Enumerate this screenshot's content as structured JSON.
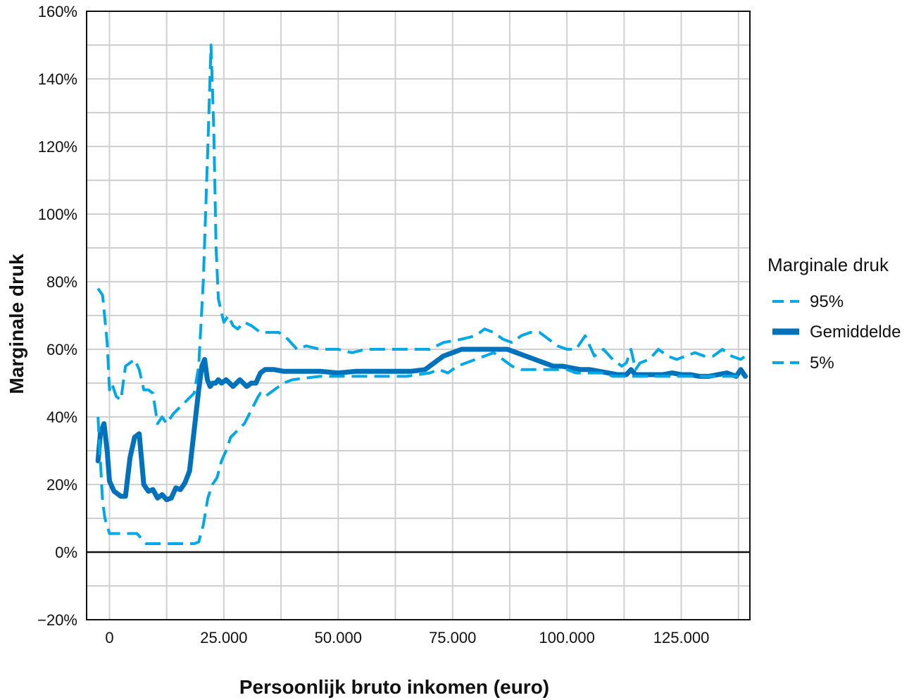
{
  "chart_data": {
    "type": "line",
    "xlabel": "Persoonlijk bruto inkomen (euro)",
    "ylabel": "Marginale druk",
    "xlim": [
      -5000,
      140000
    ],
    "ylim": [
      -20,
      160
    ],
    "x_ticks": [
      0,
      25000,
      50000,
      75000,
      100000,
      125000
    ],
    "x_tick_labels": [
      "0",
      "25.000",
      "50.000",
      "75.000",
      "100.000",
      "125.000"
    ],
    "y_ticks": [
      -20,
      0,
      20,
      40,
      60,
      80,
      100,
      120,
      140,
      160
    ],
    "y_tick_labels": [
      "−20%",
      "0%",
      "20%",
      "40%",
      "60%",
      "80%",
      "100%",
      "120%",
      "140%",
      "160%"
    ],
    "grid": true,
    "legend": {
      "title": "Marginale druk",
      "position": "right"
    },
    "colors": {
      "dashed": "#00A8E8",
      "solid": "#0072BC",
      "grid": "#d0d0d0",
      "zero": "#111111"
    },
    "series": [
      {
        "name": "95%",
        "style": "dashed",
        "x": [
          -2500,
          -1500,
          -500,
          0,
          500,
          1500,
          2500,
          3500,
          4500,
          5500,
          6500,
          7500,
          8500,
          9500,
          10500,
          11500,
          12500,
          14000,
          15500,
          17000,
          18500,
          19500,
          20500,
          21500,
          22200,
          22800,
          23300,
          23800,
          24300,
          25000,
          26000,
          27000,
          28000,
          29500,
          31000,
          33000,
          35000,
          37000,
          39000,
          41000,
          43000,
          46000,
          50000,
          53000,
          56000,
          60000,
          65000,
          70000,
          73000,
          77000,
          80000,
          82000,
          84000,
          86000,
          88000,
          90000,
          92000,
          94000,
          96000,
          98000,
          100000,
          102000,
          104000,
          106000,
          108000,
          110000,
          112000,
          113000,
          114000,
          115000,
          116000,
          118000,
          120000,
          122000,
          124000,
          126000,
          128000,
          130000,
          132000,
          134000,
          136000,
          138000,
          139000
        ],
        "values": [
          78,
          76,
          62,
          48,
          50,
          46,
          45,
          55,
          56,
          57,
          54,
          48,
          48,
          47,
          38,
          40,
          38,
          41,
          43,
          45,
          47,
          55,
          80,
          120,
          150,
          125,
          90,
          75,
          72,
          68,
          70,
          67,
          66,
          68,
          67,
          65,
          65,
          65,
          63,
          60,
          61,
          60,
          60,
          59,
          60,
          60,
          60,
          60,
          62,
          63,
          64,
          66,
          65,
          63,
          62,
          64,
          65,
          65,
          63,
          61,
          60,
          60,
          64,
          58,
          60,
          57,
          55,
          56,
          60,
          54,
          56,
          57,
          60,
          58,
          57,
          58,
          59,
          58,
          58,
          60,
          58,
          57,
          58
        ]
      },
      {
        "name": "Gemiddelde",
        "style": "solid",
        "x": [
          -2500,
          -2000,
          -1200,
          -500,
          0,
          1000,
          2500,
          3500,
          4500,
          5500,
          6500,
          7500,
          8500,
          9500,
          10500,
          11500,
          12500,
          13500,
          14500,
          15500,
          16500,
          17500,
          18500,
          19500,
          20200,
          20800,
          21400,
          22000,
          22600,
          23200,
          23800,
          24500,
          25500,
          27000,
          28500,
          30000,
          31000,
          32000,
          33000,
          34000,
          35000,
          36000,
          38000,
          40000,
          43000,
          46000,
          50000,
          54000,
          58000,
          62000,
          66000,
          69000,
          71000,
          73000,
          75000,
          77000,
          79000,
          81000,
          83000,
          85000,
          87000,
          89000,
          91000,
          93000,
          95000,
          97000,
          99000,
          101000,
          103000,
          105000,
          107000,
          109000,
          111000,
          113000,
          114000,
          115000,
          117000,
          119000,
          121000,
          123000,
          125000,
          127000,
          129000,
          131000,
          133000,
          135000,
          137000,
          138000,
          139000
        ],
        "values": [
          27,
          35,
          38,
          30,
          21,
          18,
          16.5,
          16.5,
          28,
          34,
          35,
          20,
          18,
          18.5,
          16,
          17,
          15.5,
          16,
          19,
          18.5,
          20.5,
          24,
          36,
          48,
          55,
          57,
          51,
          49,
          50,
          50,
          51,
          50,
          51,
          49,
          51,
          49,
          50,
          50,
          53,
          54,
          54,
          54,
          53.5,
          53.5,
          53.5,
          53.5,
          53,
          53.5,
          53.5,
          53.5,
          53.5,
          54,
          56,
          58,
          59,
          60,
          60,
          60,
          60,
          60,
          60,
          59,
          58,
          57,
          56,
          55,
          55,
          54.5,
          54,
          54,
          53.5,
          53,
          52.5,
          52.5,
          54,
          52.5,
          52.5,
          52.5,
          52.5,
          53,
          52.5,
          52.5,
          52,
          52,
          52.5,
          53,
          52,
          54,
          52
        ]
      },
      {
        "name": "5%",
        "style": "dashed",
        "x": [
          -2500,
          -1500,
          -1000,
          0,
          1000,
          2000,
          3000,
          4000,
          5000,
          6000,
          7000,
          8000,
          9000,
          10000,
          12000,
          14000,
          16000,
          17500,
          18500,
          19500,
          20500,
          21500,
          22500,
          23500,
          24500,
          25500,
          26500,
          28000,
          29500,
          31000,
          32500,
          33000,
          34000,
          35000,
          36000,
          37000,
          38000,
          39000,
          40000,
          43000,
          46000,
          50000,
          55000,
          60000,
          65000,
          70000,
          72000,
          74000,
          76000,
          78000,
          80000,
          82000,
          84000,
          86000,
          88000,
          90000,
          92000,
          94000,
          96000,
          98000,
          100000,
          102000,
          104000,
          106000,
          108000,
          110000,
          112000,
          114000,
          116000,
          118000,
          120000,
          122000,
          124000,
          126000,
          128000,
          130000,
          132000,
          134000,
          136000,
          138000,
          139000
        ],
        "values": [
          40,
          15,
          10,
          5.5,
          5.5,
          5.5,
          5.5,
          5.5,
          5.5,
          5.5,
          4,
          2.5,
          2.5,
          2.5,
          2.5,
          2.5,
          2.5,
          2.5,
          2.5,
          3,
          8,
          16,
          20,
          22,
          27,
          30,
          34,
          36,
          38,
          42,
          46,
          47,
          46,
          47,
          48,
          49,
          50,
          50.5,
          51,
          51.5,
          52,
          52,
          52,
          52,
          52,
          53,
          54,
          53,
          55,
          56,
          57,
          58,
          59,
          57,
          55,
          54,
          54,
          54,
          54,
          54,
          54,
          53,
          53,
          53,
          53,
          52,
          52,
          52,
          52,
          52,
          52,
          52,
          52,
          52,
          52,
          52,
          52,
          52,
          52,
          52,
          52
        ]
      }
    ]
  }
}
